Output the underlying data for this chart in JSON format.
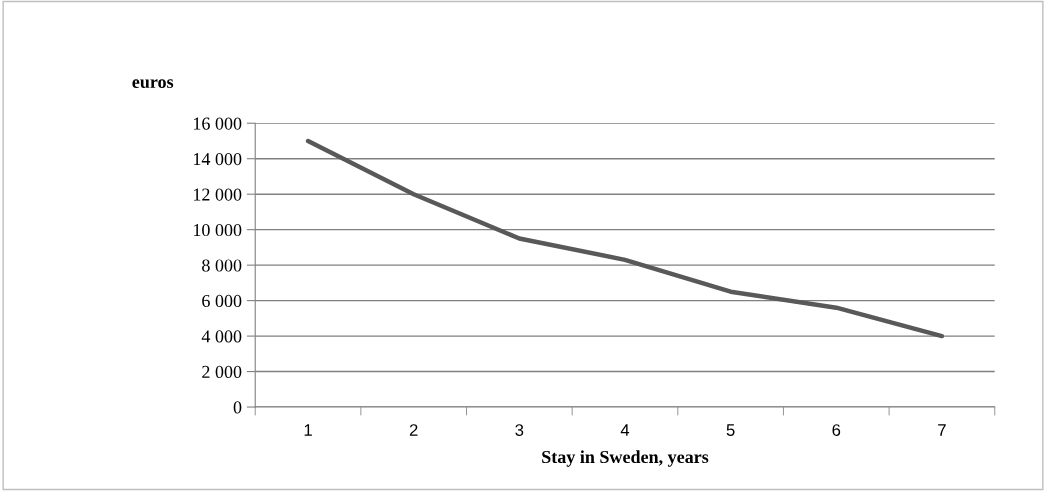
{
  "chart_data": {
    "type": "line",
    "ylabel": "euros",
    "xlabel": "Stay in Sweden, years",
    "categories": [
      "1",
      "2",
      "3",
      "4",
      "5",
      "6",
      "7"
    ],
    "series": [
      {
        "color": "#595959",
        "values": [
          15000,
          12000,
          9500,
          8300,
          6500,
          5600,
          4000
        ]
      }
    ],
    "ylim": [
      0,
      16000
    ],
    "yticks": [
      {
        "value": 0,
        "label": "0"
      },
      {
        "value": 2000,
        "label": "2 000"
      },
      {
        "value": 4000,
        "label": "4 000"
      },
      {
        "value": 6000,
        "label": "6 000"
      },
      {
        "value": 8000,
        "label": "8 000"
      },
      {
        "value": 10000,
        "label": "10 000"
      },
      {
        "value": 12000,
        "label": "12 000"
      },
      {
        "value": 14000,
        "label": "14 000"
      },
      {
        "value": 16000,
        "label": "16 000"
      }
    ],
    "grid": "y",
    "legend": false,
    "marker": "none",
    "line_style": "solid"
  }
}
